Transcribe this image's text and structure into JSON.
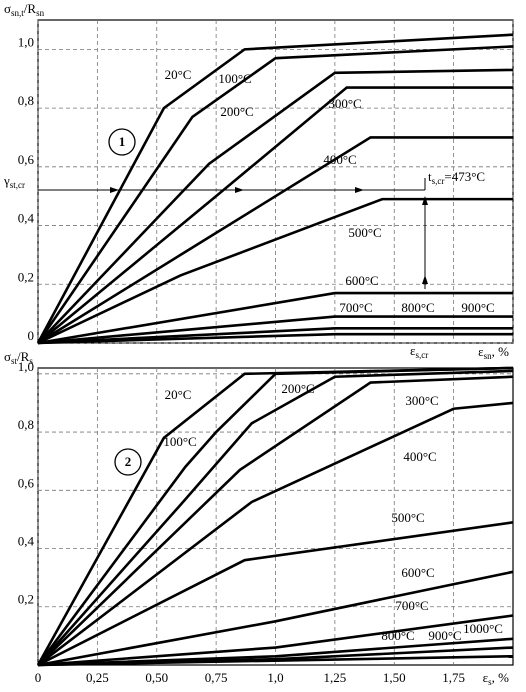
{
  "chart_data": [
    {
      "type": "line",
      "marker": "1",
      "y_label": [
        "σ",
        "sn,t",
        "/R",
        "sn"
      ],
      "x_label": [
        "ε",
        "sn",
        ", %"
      ],
      "gamma_label": [
        "γ",
        "st,cr"
      ],
      "t_label": [
        "t",
        "s,cr",
        "=473°C"
      ],
      "eps_label": [
        "ε",
        "s,cr"
      ],
      "xlim": [
        0,
        2
      ],
      "ylim": [
        0,
        1.1
      ],
      "grid": true,
      "xtick_labels": false,
      "xticks": [
        0,
        0.25,
        0.5,
        0.75,
        1,
        1.25,
        1.5,
        1.75,
        2
      ],
      "yticks": [
        0,
        {
          "value": 0.2,
          "label": "0,2"
        },
        {
          "value": 0.4,
          "label": "0,4"
        },
        {
          "value": 0.6,
          "label": "0,6"
        },
        {
          "value": 0.8,
          "label": "0,8"
        },
        {
          "value": 1.0,
          "label": "1,0"
        }
      ],
      "series": [
        {
          "name": "20°C",
          "color": "#000000",
          "x": [
            0,
            0.53,
            0.87,
            2
          ],
          "values": [
            0,
            0.8,
            1.0,
            1.05
          ]
        },
        {
          "name": "100°C",
          "color": "#000000",
          "x": [
            0,
            0.65,
            1.0,
            2
          ],
          "values": [
            0,
            0.77,
            0.97,
            1.01
          ]
        },
        {
          "name": "200°C",
          "color": "#000000",
          "x": [
            0,
            0.72,
            1.25,
            2
          ],
          "values": [
            0,
            0.61,
            0.92,
            0.93
          ]
        },
        {
          "name": "300°C",
          "color": "#000000",
          "x": [
            0,
            0.75,
            1.3,
            2
          ],
          "values": [
            0,
            0.5,
            0.87,
            0.87
          ]
        },
        {
          "name": "400°C",
          "color": "#000000",
          "x": [
            0,
            0.6,
            1.4,
            2
          ],
          "values": [
            0,
            0.3,
            0.7,
            0.7
          ]
        },
        {
          "name": "500°C",
          "color": "#000000",
          "x": [
            0,
            0.6,
            1.45,
            2
          ],
          "values": [
            0,
            0.23,
            0.49,
            0.49
          ]
        },
        {
          "name": "600°C",
          "color": "#000000",
          "x": [
            0,
            1.25,
            2
          ],
          "values": [
            0,
            0.17,
            0.17
          ]
        },
        {
          "name": "700°C",
          "color": "#000000",
          "x": [
            0,
            1.25,
            2
          ],
          "values": [
            0,
            0.09,
            0.09
          ]
        },
        {
          "name": "800°C",
          "color": "#000000",
          "x": [
            0,
            1.25,
            2
          ],
          "values": [
            0,
            0.05,
            0.05
          ]
        },
        {
          "name": "900°C",
          "color": "#000000",
          "x": [
            0,
            1.25,
            2
          ],
          "values": [
            0,
            0.03,
            0.03
          ]
        }
      ]
    },
    {
      "type": "line",
      "marker": "2",
      "y_label": [
        "σ",
        "st",
        "/R",
        "s"
      ],
      "x_label": [
        "ε",
        "s",
        ", %"
      ],
      "xlim": [
        0,
        2
      ],
      "ylim": [
        0,
        1.02
      ],
      "grid": true,
      "xtick_labels": true,
      "xticks": [
        0,
        {
          "value": 0.25,
          "label": "0,25"
        },
        {
          "value": 0.5,
          "label": "0,50"
        },
        {
          "value": 0.75,
          "label": "0,75"
        },
        {
          "value": 1.0,
          "label": "1,0"
        },
        {
          "value": 1.25,
          "label": "1,25"
        },
        {
          "value": 1.5,
          "label": "1,50"
        },
        {
          "value": 1.75,
          "label": "1,75"
        }
      ],
      "yticks": [
        {
          "value": 0.2,
          "label": "0,2"
        },
        {
          "value": 0.4,
          "label": "0,4"
        },
        {
          "value": 0.6,
          "label": "0,6"
        },
        {
          "value": 0.8,
          "label": "0,8"
        },
        {
          "value": 1.0,
          "label": "1,0"
        }
      ],
      "series": [
        {
          "name": "20°C",
          "color": "#000000",
          "x": [
            0,
            0.53,
            0.87,
            2
          ],
          "values": [
            0,
            0.78,
            1.0,
            1.02
          ]
        },
        {
          "name": "100°C",
          "color": "#000000",
          "x": [
            0,
            0.62,
            0.75,
            1.0,
            2
          ],
          "values": [
            0,
            0.68,
            0.8,
            1.0,
            1.02
          ]
        },
        {
          "name": "200°C",
          "color": "#000000",
          "x": [
            0,
            0.6,
            0.9,
            1.25,
            2
          ],
          "values": [
            0,
            0.55,
            0.83,
            0.99,
            1.01
          ]
        },
        {
          "name": "300°C",
          "color": "#000000",
          "x": [
            0,
            0.85,
            1.4,
            2
          ],
          "values": [
            0,
            0.67,
            0.97,
            0.99
          ]
        },
        {
          "name": "400°C",
          "color": "#000000",
          "x": [
            0,
            0.9,
            1.75,
            2
          ],
          "values": [
            0,
            0.56,
            0.88,
            0.9
          ]
        },
        {
          "name": "500°C",
          "color": "#000000",
          "x": [
            0,
            0.87,
            2
          ],
          "values": [
            0,
            0.36,
            0.49
          ]
        },
        {
          "name": "600°C",
          "color": "#000000",
          "x": [
            0,
            1.0,
            2
          ],
          "values": [
            0,
            0.15,
            0.32
          ]
        },
        {
          "name": "700°C",
          "color": "#000000",
          "x": [
            0,
            1.0,
            2
          ],
          "values": [
            0,
            0.06,
            0.17
          ]
        },
        {
          "name": "800°C",
          "color": "#000000",
          "x": [
            0,
            1.0,
            2
          ],
          "values": [
            0,
            0.03,
            0.09
          ]
        },
        {
          "name": "900°C",
          "color": "#000000",
          "x": [
            0,
            1.0,
            2
          ],
          "values": [
            0,
            0.02,
            0.06
          ]
        },
        {
          "name": "1000°C",
          "color": "#000000",
          "x": [
            0,
            2
          ],
          "values": [
            0,
            0.03
          ]
        }
      ]
    }
  ]
}
